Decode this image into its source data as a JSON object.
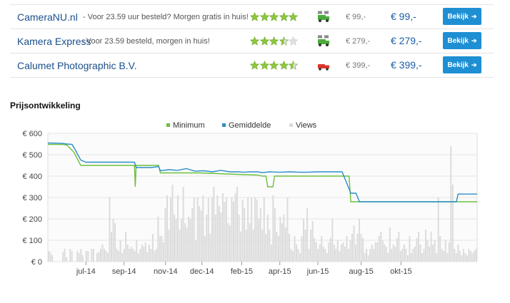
{
  "shops": [
    {
      "name": "CameraNU.nl",
      "note": "- Voor 23.59 uur besteld? Morgen gratis in huis!",
      "stars": 5,
      "delivery": "green",
      "price_small": "€ 99,-",
      "price_big": "€ 99,-",
      "button": "Bekijk"
    },
    {
      "name": "Kamera Express",
      "note": "- Voor 23.59 besteld, morgen in huis!",
      "stars": 3.5,
      "delivery": "green",
      "price_small": "€ 279,-",
      "price_big": "€ 279,-",
      "button": "Bekijk"
    },
    {
      "name": "Calumet Photographic B.V.",
      "note": "",
      "stars": 4.5,
      "delivery": "red",
      "price_small": "€ 399,-",
      "price_big": "€ 399,-",
      "button": "Bekijk"
    }
  ],
  "section_title": "Prijsontwikkeling",
  "colors": {
    "minimum": "#6cbf3c",
    "average": "#2b8ec9",
    "views": "#dcdcdc",
    "button": "#1f8fd3",
    "star": "#8dc63f"
  },
  "chart_data": {
    "type": "line",
    "legend": [
      "Minimum",
      "Gemiddelde",
      "Views"
    ],
    "legend_placement": "top-center",
    "y_ticks": [
      "€ 0",
      "€ 100",
      "€ 200",
      "€ 300",
      "€ 400",
      "€ 500",
      "€ 600"
    ],
    "ylim": [
      0,
      600
    ],
    "x_ticks": [
      "jul-14",
      "sep-14",
      "nov-14",
      "dec-14",
      "feb-15",
      "apr-15",
      "jun-15",
      "aug-15",
      "okt-15"
    ],
    "series": [
      {
        "name": "Minimum",
        "points": [
          [
            0,
            548
          ],
          [
            9,
            548
          ],
          [
            11,
            545
          ],
          [
            15,
            512
          ],
          [
            19,
            450
          ],
          [
            50,
            450
          ],
          [
            50.5,
            350
          ],
          [
            51,
            450
          ],
          [
            64,
            450
          ],
          [
            65,
            415
          ],
          [
            86,
            415
          ],
          [
            87,
            415
          ],
          [
            120,
            405
          ],
          [
            121,
            405
          ],
          [
            124,
            400
          ],
          [
            126,
            400
          ],
          [
            127,
            350
          ],
          [
            130,
            350
          ],
          [
            131,
            400
          ],
          [
            174,
            400
          ],
          [
            175,
            280
          ],
          [
            248,
            280
          ]
        ]
      },
      {
        "name": "Gemiddelde",
        "points": [
          [
            0,
            555
          ],
          [
            8,
            553
          ],
          [
            11,
            550
          ],
          [
            14,
            548
          ],
          [
            16,
            520
          ],
          [
            19,
            475
          ],
          [
            22,
            465
          ],
          [
            35,
            465
          ],
          [
            50,
            465
          ],
          [
            51,
            440
          ],
          [
            56,
            440
          ],
          [
            60,
            440
          ],
          [
            64,
            445
          ],
          [
            65,
            425
          ],
          [
            70,
            430
          ],
          [
            75,
            427
          ],
          [
            80,
            435
          ],
          [
            85,
            423
          ],
          [
            90,
            425
          ],
          [
            95,
            420
          ],
          [
            100,
            427
          ],
          [
            105,
            420
          ],
          [
            110,
            420
          ],
          [
            113,
            418
          ],
          [
            117,
            420
          ],
          [
            121,
            420
          ],
          [
            124,
            416
          ],
          [
            128,
            420
          ],
          [
            134,
            418
          ],
          [
            140,
            420
          ],
          [
            145,
            418
          ],
          [
            150,
            418
          ],
          [
            156,
            420
          ],
          [
            160,
            420
          ],
          [
            165,
            420
          ],
          [
            170,
            420
          ],
          [
            175,
            320
          ],
          [
            178,
            320
          ],
          [
            180,
            280
          ],
          [
            190,
            280
          ],
          [
            210,
            280
          ],
          [
            230,
            280
          ],
          [
            236,
            280
          ],
          [
            237,
            316
          ],
          [
            248,
            316
          ]
        ]
      },
      {
        "name": "Views",
        "values": [
          50,
          45,
          30,
          0,
          0,
          0,
          0,
          0,
          45,
          60,
          20,
          0,
          60,
          50,
          0,
          0,
          50,
          40,
          60,
          30,
          0,
          50,
          50,
          0,
          60,
          60,
          0,
          40,
          45,
          60,
          80,
          60,
          50,
          40,
          300,
          140,
          200,
          180,
          60,
          50,
          100,
          40,
          60,
          140,
          80,
          60,
          70,
          60,
          50,
          100,
          40,
          60,
          80,
          70,
          90,
          45,
          80,
          60,
          130,
          50,
          60,
          210,
          120,
          120,
          90,
          250,
          310,
          150,
          300,
          360,
          220,
          200,
          310,
          150,
          200,
          350,
          180,
          160,
          210,
          200,
          250,
          300,
          100,
          300,
          260,
          240,
          310,
          120,
          220,
          300,
          130,
          300,
          350,
          220,
          310,
          260,
          230,
          320,
          280,
          300,
          180,
          170,
          300,
          280,
          320,
          350,
          220,
          140,
          290,
          250,
          150,
          300,
          180,
          300,
          150,
          300,
          290,
          200,
          250,
          150,
          300,
          130,
          220,
          150,
          80,
          310,
          250,
          140,
          120,
          210,
          180,
          220,
          160,
          300,
          130,
          60,
          50,
          120,
          80,
          60,
          40,
          120,
          200,
          150,
          250,
          60,
          150,
          190,
          110,
          90,
          60,
          80,
          120,
          70,
          60,
          40,
          90,
          110,
          200,
          80,
          60,
          100,
          50,
          80,
          90,
          70,
          120,
          60,
          100,
          130,
          170,
          80,
          130,
          200,
          130,
          110,
          40,
          60,
          30,
          60,
          80,
          60,
          90,
          90,
          120,
          140,
          100,
          80,
          70,
          40,
          160,
          60,
          80,
          70,
          110,
          140,
          50,
          60,
          80,
          60,
          30,
          120,
          40,
          60,
          70,
          110,
          140,
          80,
          40,
          60,
          150,
          100,
          70,
          140,
          80,
          100,
          40,
          300,
          120,
          60,
          50,
          100,
          40,
          90,
          540,
          360,
          60,
          40,
          80,
          50,
          30,
          60,
          40,
          30,
          60,
          50,
          40,
          50,
          60
        ]
      }
    ]
  }
}
